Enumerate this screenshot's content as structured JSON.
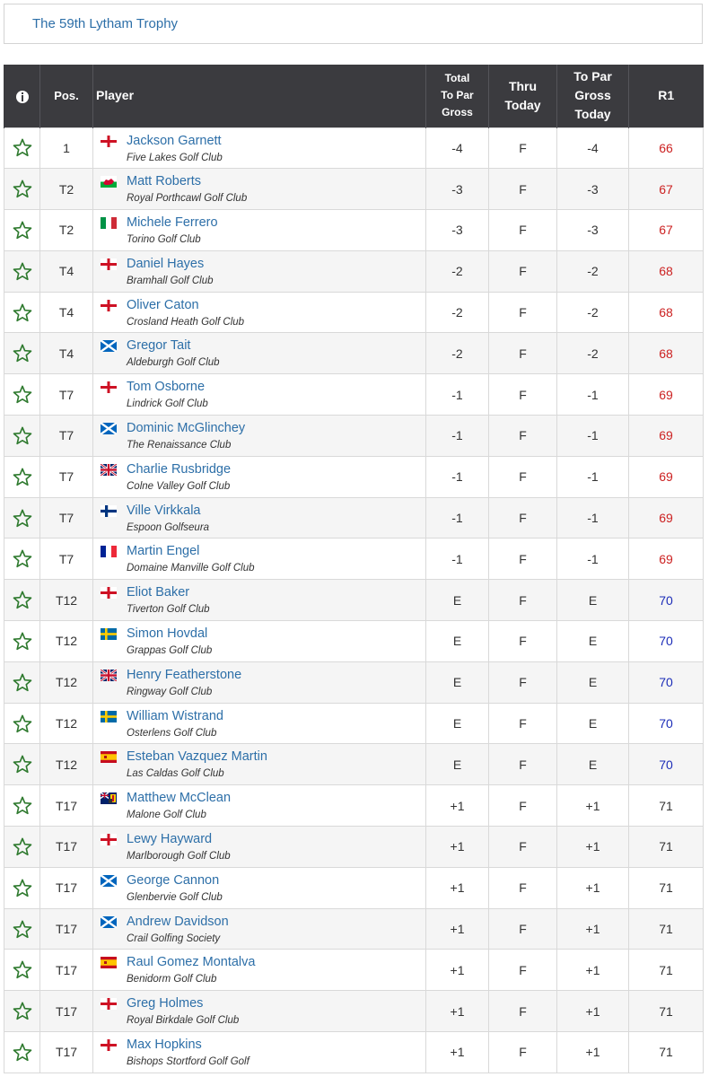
{
  "event": {
    "title": "The 59th Lytham Trophy"
  },
  "columns": {
    "pos": "Pos.",
    "player": "Player",
    "total_to_par": [
      "Total",
      "To Par",
      "Gross"
    ],
    "thru_today": [
      "Thru",
      "Today"
    ],
    "to_par_today": [
      "To Par",
      "Gross",
      "Today"
    ],
    "r1": "R1"
  },
  "icons": {
    "header": "info-icon",
    "row": "star-icon"
  },
  "colors": {
    "header_bg": "#3b3b3f",
    "under_par": "#cc2222",
    "even_par": "#1c2db8",
    "link": "#2d6fa8",
    "star": "#2f7a2f"
  },
  "rows": [
    {
      "pos": "1",
      "flag": "england",
      "name": "Jackson Garnett",
      "club": "Five Lakes Golf Club",
      "total": "-4",
      "thru": "F",
      "today": "-4",
      "r1": "66",
      "status": "neg"
    },
    {
      "pos": "T2",
      "flag": "wales",
      "name": "Matt Roberts",
      "club": "Royal Porthcawl Golf Club",
      "total": "-3",
      "thru": "F",
      "today": "-3",
      "r1": "67",
      "status": "neg"
    },
    {
      "pos": "T2",
      "flag": "italy",
      "name": "Michele Ferrero",
      "club": "Torino Golf Club",
      "total": "-3",
      "thru": "F",
      "today": "-3",
      "r1": "67",
      "status": "neg"
    },
    {
      "pos": "T4",
      "flag": "england",
      "name": "Daniel Hayes",
      "club": "Bramhall Golf Club",
      "total": "-2",
      "thru": "F",
      "today": "-2",
      "r1": "68",
      "status": "neg"
    },
    {
      "pos": "T4",
      "flag": "england",
      "name": "Oliver Caton",
      "club": "Crosland Heath Golf Club",
      "total": "-2",
      "thru": "F",
      "today": "-2",
      "r1": "68",
      "status": "neg"
    },
    {
      "pos": "T4",
      "flag": "scotland",
      "name": "Gregor Tait",
      "club": "Aldeburgh Golf Club",
      "total": "-2",
      "thru": "F",
      "today": "-2",
      "r1": "68",
      "status": "neg"
    },
    {
      "pos": "T7",
      "flag": "england",
      "name": "Tom Osborne",
      "club": "Lindrick Golf Club",
      "total": "-1",
      "thru": "F",
      "today": "-1",
      "r1": "69",
      "status": "neg"
    },
    {
      "pos": "T7",
      "flag": "scotland",
      "name": "Dominic McGlinchey",
      "club": "The Renaissance Club",
      "total": "-1",
      "thru": "F",
      "today": "-1",
      "r1": "69",
      "status": "neg"
    },
    {
      "pos": "T7",
      "flag": "uk",
      "name": "Charlie Rusbridge",
      "club": "Colne Valley Golf Club",
      "total": "-1",
      "thru": "F",
      "today": "-1",
      "r1": "69",
      "status": "neg"
    },
    {
      "pos": "T7",
      "flag": "finland",
      "name": "Ville Virkkala",
      "club": "Espoon Golfseura",
      "total": "-1",
      "thru": "F",
      "today": "-1",
      "r1": "69",
      "status": "neg"
    },
    {
      "pos": "T7",
      "flag": "france",
      "name": "Martin Engel",
      "club": "Domaine Manville Golf Club",
      "total": "-1",
      "thru": "F",
      "today": "-1",
      "r1": "69",
      "status": "neg"
    },
    {
      "pos": "T12",
      "flag": "england",
      "name": "Eliot Baker",
      "club": "Tiverton Golf Club",
      "total": "E",
      "thru": "F",
      "today": "E",
      "r1": "70",
      "status": "even"
    },
    {
      "pos": "T12",
      "flag": "sweden",
      "name": "Simon Hovdal",
      "club": "Grappas Golf Club",
      "total": "E",
      "thru": "F",
      "today": "E",
      "r1": "70",
      "status": "even"
    },
    {
      "pos": "T12",
      "flag": "uk",
      "name": "Henry Featherstone",
      "club": "Ringway Golf Club",
      "total": "E",
      "thru": "F",
      "today": "E",
      "r1": "70",
      "status": "even"
    },
    {
      "pos": "T12",
      "flag": "sweden",
      "name": "William Wistrand",
      "club": "Osterlens Golf Club",
      "total": "E",
      "thru": "F",
      "today": "E",
      "r1": "70",
      "status": "even"
    },
    {
      "pos": "T12",
      "flag": "spain",
      "name": "Esteban Vazquez Martin",
      "club": "Las Caldas Golf Club",
      "total": "E",
      "thru": "F",
      "today": "E",
      "r1": "70",
      "status": "even"
    },
    {
      "pos": "T17",
      "flag": "ulster",
      "name": "Matthew McClean",
      "club": "Malone Golf Club",
      "total": "+1",
      "thru": "F",
      "today": "+1",
      "r1": "71",
      "status": "plus"
    },
    {
      "pos": "T17",
      "flag": "england",
      "name": "Lewy Hayward",
      "club": "Marlborough Golf Club",
      "total": "+1",
      "thru": "F",
      "today": "+1",
      "r1": "71",
      "status": "plus"
    },
    {
      "pos": "T17",
      "flag": "scotland",
      "name": "George Cannon",
      "club": "Glenbervie Golf Club",
      "total": "+1",
      "thru": "F",
      "today": "+1",
      "r1": "71",
      "status": "plus"
    },
    {
      "pos": "T17",
      "flag": "scotland",
      "name": "Andrew Davidson",
      "club": "Crail Golfing Society",
      "total": "+1",
      "thru": "F",
      "today": "+1",
      "r1": "71",
      "status": "plus"
    },
    {
      "pos": "T17",
      "flag": "spain",
      "name": "Raul Gomez Montalva",
      "club": "Benidorm Golf Club",
      "total": "+1",
      "thru": "F",
      "today": "+1",
      "r1": "71",
      "status": "plus"
    },
    {
      "pos": "T17",
      "flag": "england",
      "name": "Greg Holmes",
      "club": "Royal Birkdale Golf Club",
      "total": "+1",
      "thru": "F",
      "today": "+1",
      "r1": "71",
      "status": "plus"
    },
    {
      "pos": "T17",
      "flag": "england",
      "name": "Max Hopkins",
      "club": "Bishops Stortford Golf Golf",
      "total": "+1",
      "thru": "F",
      "today": "+1",
      "r1": "71",
      "status": "plus"
    }
  ]
}
